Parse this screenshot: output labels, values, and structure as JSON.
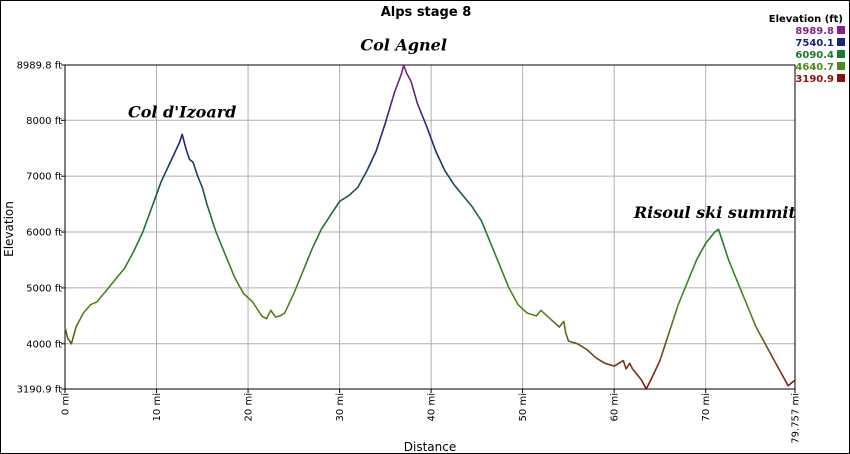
{
  "chart_data": {
    "type": "line",
    "title": "Alps stage 8",
    "xlabel": "Distance",
    "ylabel": "Elevation",
    "xlim": [
      0,
      79.757
    ],
    "ylim": [
      3190.9,
      8989.8
    ],
    "x_ticks": [
      {
        "value": 0,
        "label": "0 mi"
      },
      {
        "value": 10,
        "label": "10 mi"
      },
      {
        "value": 20,
        "label": "20 mi"
      },
      {
        "value": 30,
        "label": "30 mi"
      },
      {
        "value": 40,
        "label": "40 mi"
      },
      {
        "value": 50,
        "label": "50 mi"
      },
      {
        "value": 60,
        "label": "60 mi"
      },
      {
        "value": 70,
        "label": "70 mi"
      },
      {
        "value": 79.757,
        "label": "79.757 mi"
      }
    ],
    "y_ticks": [
      {
        "value": 3190.9,
        "label": "3190.9 ft"
      },
      {
        "value": 4000,
        "label": "4000 ft"
      },
      {
        "value": 5000,
        "label": "5000 ft"
      },
      {
        "value": 6000,
        "label": "6000 ft"
      },
      {
        "value": 7000,
        "label": "7000 ft"
      },
      {
        "value": 8000,
        "label": "8000 ft"
      },
      {
        "value": 8989.8,
        "label": "8989.8 ft"
      }
    ],
    "grid": true,
    "legend": {
      "title": "Elevation (ft)",
      "placement": "top-right",
      "entries": [
        {
          "label": "8989.8",
          "color": "#8a1f8f"
        },
        {
          "label": "7540.1",
          "color": "#1a237e"
        },
        {
          "label": "6090.4",
          "color": "#1b7a2e"
        },
        {
          "label": "4640.7",
          "color": "#4f8a1a"
        },
        {
          "label": "3190.9",
          "color": "#8b1212"
        }
      ]
    },
    "annotations": [
      {
        "text": "Col d'Izoard",
        "x": 12.8,
        "y": 8050
      },
      {
        "text": "Col Agnel",
        "x": 37.0,
        "y": 9250
      },
      {
        "text": "Risoul ski summit",
        "x": 71.0,
        "y": 6250
      }
    ],
    "series": [
      {
        "x": [
          0,
          0.3,
          0.7,
          1.2,
          2.0,
          2.8,
          3.5,
          4.0,
          4.5,
          5.5,
          6.5,
          7.5,
          8.5,
          9.5,
          10.5,
          11.5,
          12.5,
          12.8,
          13.2,
          13.6,
          14.0,
          14.5,
          15.0,
          15.5,
          16.5,
          17.5,
          18.5,
          19.5,
          20.5,
          21.5,
          22.0,
          22.5,
          23.0,
          23.5,
          24.0,
          25.0,
          26.0,
          27.0,
          28.0,
          29.0,
          30.0,
          31.0,
          32.0,
          33.0,
          34.0,
          35.0,
          36.0,
          36.8,
          37.0,
          37.3,
          37.8,
          38.5,
          39.5,
          40.5,
          41.5,
          42.5,
          43.5,
          44.5,
          45.5,
          46.5,
          47.5,
          48.5,
          49.5,
          50.5,
          51.5,
          52.0,
          53.0,
          54.0,
          54.5,
          54.7,
          55.0,
          56.0,
          57.0,
          58.0,
          59.0,
          60.0,
          61.0,
          61.3,
          61.7,
          62.0,
          62.5,
          63.0,
          63.5,
          64.0,
          65.0,
          66.0,
          67.0,
          68.0,
          69.0,
          70.0,
          71.0,
          71.4,
          71.8,
          72.5,
          73.5,
          74.5,
          75.5,
          76.5,
          77.5,
          78.5,
          79.0,
          79.757
        ],
        "values": [
          4300,
          4100,
          4000,
          4300,
          4550,
          4700,
          4750,
          4850,
          4950,
          5150,
          5350,
          5650,
          6000,
          6450,
          6900,
          7250,
          7600,
          7750,
          7500,
          7300,
          7250,
          7000,
          6800,
          6500,
          6000,
          5600,
          5200,
          4900,
          4750,
          4500,
          4450,
          4600,
          4480,
          4500,
          4550,
          4900,
          5300,
          5700,
          6050,
          6300,
          6550,
          6650,
          6800,
          7100,
          7450,
          7950,
          8500,
          8850,
          8989.8,
          8850,
          8700,
          8300,
          7900,
          7450,
          7100,
          6850,
          6650,
          6450,
          6200,
          5800,
          5400,
          5000,
          4700,
          4550,
          4500,
          4600,
          4450,
          4300,
          4400,
          4200,
          4050,
          4000,
          3900,
          3750,
          3650,
          3600,
          3700,
          3550,
          3650,
          3550,
          3450,
          3350,
          3190.9,
          3350,
          3700,
          4200,
          4700,
          5100,
          5500,
          5800,
          6000,
          6050,
          5850,
          5500,
          5100,
          4700,
          4300,
          4000,
          3700,
          3400,
          3250,
          3350
        ]
      }
    ]
  }
}
